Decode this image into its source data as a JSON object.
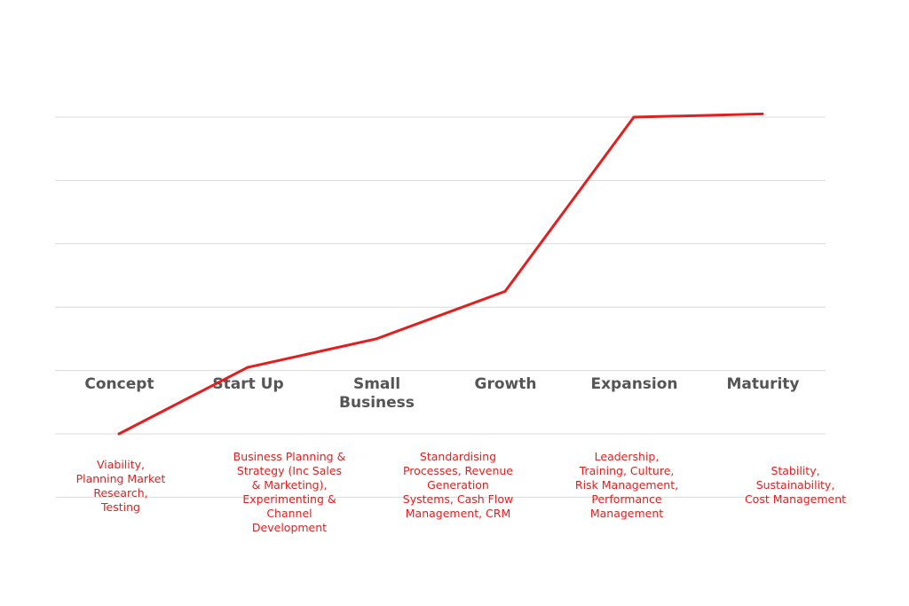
{
  "chart_data": {
    "type": "line",
    "categories": [
      "Concept",
      "Start Up",
      "Small Business",
      "Growth",
      "Expansion",
      "Maturity"
    ],
    "series": [
      {
        "values": [
          0,
          1.05,
          1.5,
          2.25,
          5.0,
          5.05
        ]
      }
    ],
    "ylim": [
      0,
      5
    ],
    "grid": true,
    "legend": "none",
    "line_color": "#e41e1e",
    "grid_color": "#d9d9d9",
    "label_color": "#555555",
    "annotations": [
      "Viability,\nPlanning Market\nResearch,\nTesting",
      "Business Planning &\nStrategy (Inc Sales\n& Marketing),\nExperimenting &\nChannel\nDevelopment",
      "Standardising\nProcesses, Revenue\nGeneration\nSystems, Cash Flow\nManagement, CRM",
      "Leadership,\nTraining, Culture,\nRisk Management,\nPerformance\nManagement",
      "Stability,\nSustainability,\nCost Management"
    ]
  }
}
